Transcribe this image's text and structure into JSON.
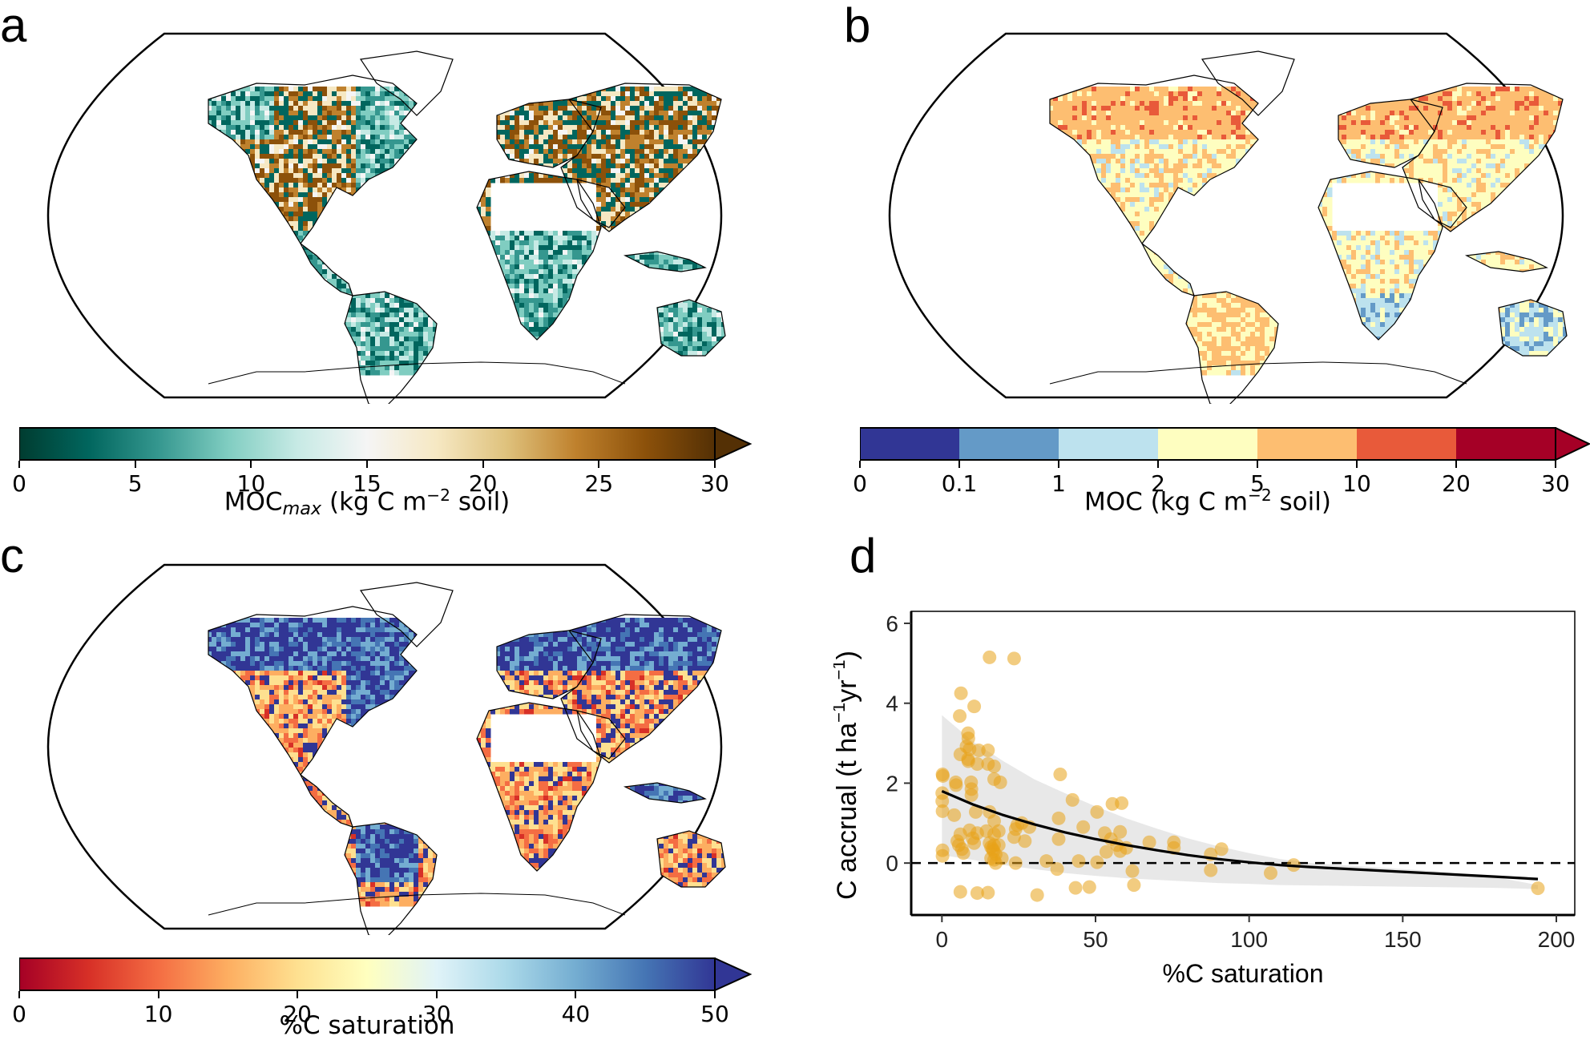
{
  "figure": {
    "panels": {
      "a": {
        "label": "a",
        "type": "map",
        "projection": "Robinson",
        "colorbar": {
          "label_main": "MOC",
          "label_sub": "max",
          "label_rest_pre": " (kg C m",
          "label_sup": "−2",
          "label_rest_post": " soil)",
          "ticks": [
            "0",
            "5",
            "10",
            "15",
            "20",
            "25",
            "30"
          ],
          "range": [
            0,
            30
          ],
          "extend": "max",
          "colormap": "BrBG_r",
          "colors": [
            "#003c30",
            "#01665e",
            "#35978f",
            "#80cdc1",
            "#c7eae5",
            "#f5f5f5",
            "#f6e8c3",
            "#dfc27d",
            "#bf812d",
            "#8c510a",
            "#543005"
          ]
        }
      },
      "b": {
        "label": "b",
        "type": "map",
        "projection": "Robinson",
        "colorbar": {
          "label_main": "MOC",
          "label_rest_pre": " (kg C m",
          "label_sup": "−2",
          "label_rest_post": " soil)",
          "ticks": [
            "0",
            "0.1",
            "1",
            "2",
            "5",
            "10",
            "20",
            "30"
          ],
          "extend": "max",
          "discrete_colors": [
            "#313695",
            "#649ac7",
            "#bde2ee",
            "#fefec0",
            "#fdbe71",
            "#e85a3a",
            "#a50026"
          ],
          "extend_color": "#a50026"
        }
      },
      "c": {
        "label": "c",
        "type": "map",
        "projection": "Robinson",
        "colorbar": {
          "label": "%C saturation",
          "ticks": [
            "0",
            "10",
            "20",
            "30",
            "40",
            "50"
          ],
          "range": [
            0,
            50
          ],
          "extend": "max",
          "colormap": "RdYlBu",
          "colors": [
            "#a50026",
            "#d73027",
            "#f46d43",
            "#fdae61",
            "#fee090",
            "#ffffbf",
            "#e0f3f8",
            "#abd9e9",
            "#74add1",
            "#4575b4",
            "#313695"
          ]
        }
      },
      "d": {
        "label": "d"
      }
    }
  },
  "chart_data": {
    "type": "scatter",
    "title": "",
    "xlabel": "%C saturation",
    "ylabel_pre": "C accrual (t ha",
    "ylabel_sup1": "−1",
    "ylabel_mid": "yr",
    "ylabel_sup2": "−1",
    "ylabel_post": ")",
    "xlim": [
      -10,
      206
    ],
    "ylim": [
      -1.3,
      6.3
    ],
    "xticks": [
      0,
      50,
      100,
      150,
      200
    ],
    "yticks": [
      0,
      2,
      4,
      6
    ],
    "xtick_labels": [
      "0",
      "50",
      "100",
      "150",
      "200"
    ],
    "ytick_labels": [
      "0",
      "2",
      "4",
      "6"
    ],
    "grid": false,
    "point_color": "#e8a317",
    "reference_line": {
      "y": 0,
      "style": "dashed",
      "color": "#000000"
    },
    "fit_line": {
      "x": [
        0,
        10,
        20,
        30,
        40,
        50,
        60,
        70,
        80,
        90,
        100,
        110,
        120,
        140,
        160,
        180,
        194
      ],
      "y": [
        1.8,
        1.47,
        1.2,
        0.97,
        0.77,
        0.6,
        0.45,
        0.32,
        0.2,
        0.1,
        0.02,
        -0.05,
        -0.1,
        -0.18,
        -0.26,
        -0.34,
        -0.4
      ]
    },
    "confidence_band": {
      "x": [
        0,
        10,
        20,
        30,
        40,
        50,
        60,
        70,
        80,
        90,
        100,
        110,
        120,
        140,
        160,
        180,
        194
      ],
      "upper": [
        3.7,
        3.05,
        2.55,
        2.1,
        1.75,
        1.42,
        1.12,
        0.86,
        0.62,
        0.42,
        0.25,
        0.1,
        0.0,
        -0.1,
        -0.2,
        -0.35,
        -0.55
      ],
      "lower": [
        0.2,
        0.08,
        -0.05,
        -0.15,
        -0.25,
        -0.32,
        -0.38,
        -0.42,
        -0.46,
        -0.5,
        -0.52,
        -0.55,
        -0.56,
        -0.58,
        -0.6,
        -0.62,
        -0.65
      ]
    },
    "points": [
      {
        "x": 15.5,
        "y": 5.15
      },
      {
        "x": 23.5,
        "y": 5.12
      },
      {
        "x": 6.2,
        "y": 4.25
      },
      {
        "x": 10.5,
        "y": 3.92
      },
      {
        "x": 5.8,
        "y": 3.68
      },
      {
        "x": 8.5,
        "y": 3.25
      },
      {
        "x": 8.6,
        "y": 3.12
      },
      {
        "x": 8.0,
        "y": 2.92
      },
      {
        "x": 9.0,
        "y": 2.85
      },
      {
        "x": 12.0,
        "y": 2.82
      },
      {
        "x": 15.0,
        "y": 2.82
      },
      {
        "x": 6.0,
        "y": 2.72
      },
      {
        "x": 8.5,
        "y": 2.6
      },
      {
        "x": 8.6,
        "y": 2.55
      },
      {
        "x": 11.5,
        "y": 2.48
      },
      {
        "x": 15.0,
        "y": 2.48
      },
      {
        "x": 17.0,
        "y": 2.42
      },
      {
        "x": 0.2,
        "y": 2.22
      },
      {
        "x": 0.3,
        "y": 2.18
      },
      {
        "x": 38.5,
        "y": 2.22
      },
      {
        "x": 17.0,
        "y": 2.1
      },
      {
        "x": 19.0,
        "y": 2.02
      },
      {
        "x": 4.5,
        "y": 2.02
      },
      {
        "x": 4.6,
        "y": 1.95
      },
      {
        "x": 9.5,
        "y": 2.02
      },
      {
        "x": 9.6,
        "y": 1.85
      },
      {
        "x": 9.6,
        "y": 1.7
      },
      {
        "x": 0.1,
        "y": 1.75
      },
      {
        "x": 0.1,
        "y": 1.55
      },
      {
        "x": 0.2,
        "y": 1.3
      },
      {
        "x": 42.5,
        "y": 1.58
      },
      {
        "x": 55.5,
        "y": 1.48
      },
      {
        "x": 58.5,
        "y": 1.5
      },
      {
        "x": 4.0,
        "y": 1.2
      },
      {
        "x": 11.0,
        "y": 1.28
      },
      {
        "x": 15.5,
        "y": 1.28
      },
      {
        "x": 50.5,
        "y": 1.28
      },
      {
        "x": 17.0,
        "y": 1.05
      },
      {
        "x": 38.0,
        "y": 1.12
      },
      {
        "x": 24.0,
        "y": 0.85
      },
      {
        "x": 24.5,
        "y": 0.95
      },
      {
        "x": 26.0,
        "y": 1.0
      },
      {
        "x": 28.5,
        "y": 0.9
      },
      {
        "x": 46.0,
        "y": 0.9
      },
      {
        "x": 53.0,
        "y": 0.75
      },
      {
        "x": 58.0,
        "y": 0.78
      },
      {
        "x": 9.0,
        "y": 0.82
      },
      {
        "x": 11.5,
        "y": 0.75
      },
      {
        "x": 14.5,
        "y": 0.8
      },
      {
        "x": 17.0,
        "y": 0.72
      },
      {
        "x": 18.5,
        "y": 0.8
      },
      {
        "x": 6.0,
        "y": 0.72
      },
      {
        "x": 10.0,
        "y": 0.62
      },
      {
        "x": 5.0,
        "y": 0.55
      },
      {
        "x": 5.5,
        "y": 0.45
      },
      {
        "x": 6.5,
        "y": 0.35
      },
      {
        "x": 7.0,
        "y": 0.25
      },
      {
        "x": 10.5,
        "y": 0.5
      },
      {
        "x": 23.5,
        "y": 0.65
      },
      {
        "x": 27.0,
        "y": 0.55
      },
      {
        "x": 38.0,
        "y": 0.6
      },
      {
        "x": 55.0,
        "y": 0.6
      },
      {
        "x": 57.0,
        "y": 0.45
      },
      {
        "x": 60.0,
        "y": 0.38
      },
      {
        "x": 53.5,
        "y": 0.28
      },
      {
        "x": 58.0,
        "y": 0.3
      },
      {
        "x": 67.5,
        "y": 0.52
      },
      {
        "x": 75.5,
        "y": 0.52
      },
      {
        "x": 75.5,
        "y": 0.38
      },
      {
        "x": 87.5,
        "y": 0.22
      },
      {
        "x": 91.0,
        "y": 0.35
      },
      {
        "x": 15.5,
        "y": 0.5
      },
      {
        "x": 16.0,
        "y": 0.4
      },
      {
        "x": 16.5,
        "y": 0.35
      },
      {
        "x": 17.0,
        "y": 0.45
      },
      {
        "x": 16.8,
        "y": 0.3
      },
      {
        "x": 17.5,
        "y": 0.22
      },
      {
        "x": 18.5,
        "y": 0.45
      },
      {
        "x": 16.0,
        "y": 0.12
      },
      {
        "x": 0.2,
        "y": 0.32
      },
      {
        "x": 0.2,
        "y": 0.18
      },
      {
        "x": 17.0,
        "y": 0.08
      },
      {
        "x": 19.5,
        "y": 0.12
      },
      {
        "x": 17.5,
        "y": 0.0
      },
      {
        "x": 24.0,
        "y": 0.0
      },
      {
        "x": 34.0,
        "y": 0.05
      },
      {
        "x": 44.5,
        "y": 0.05
      },
      {
        "x": 50.5,
        "y": 0.02
      },
      {
        "x": 37.5,
        "y": -0.15
      },
      {
        "x": 62.0,
        "y": -0.2
      },
      {
        "x": 87.5,
        "y": -0.18
      },
      {
        "x": 107.0,
        "y": -0.25
      },
      {
        "x": 114.5,
        "y": -0.05
      },
      {
        "x": 62.5,
        "y": -0.55
      },
      {
        "x": 43.5,
        "y": -0.62
      },
      {
        "x": 48.0,
        "y": -0.6
      },
      {
        "x": 6.0,
        "y": -0.72
      },
      {
        "x": 11.5,
        "y": -0.75
      },
      {
        "x": 15.0,
        "y": -0.74
      },
      {
        "x": 31.0,
        "y": -0.8
      },
      {
        "x": 194.0,
        "y": -0.63
      }
    ]
  }
}
